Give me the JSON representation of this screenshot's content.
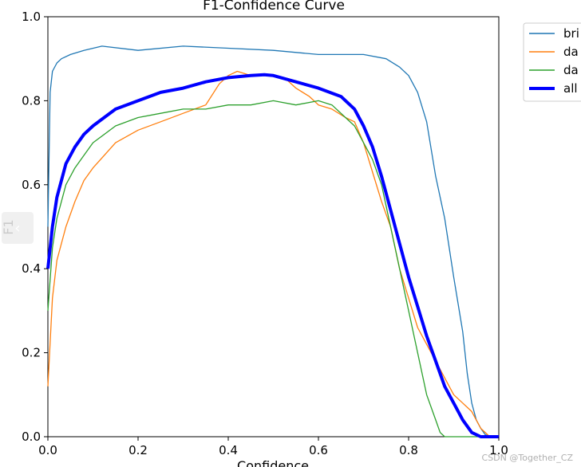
{
  "chart_data": {
    "type": "line",
    "title": "F1-Confidence Curve",
    "xlabel": "Confidence",
    "ylabel": "F1",
    "xlim": [
      0,
      1
    ],
    "ylim": [
      0,
      1
    ],
    "x_ticks": [
      "0.0",
      "0.2",
      "0.4",
      "0.6",
      "0.8",
      "1.0"
    ],
    "y_ticks": [
      "0.0",
      "0.2",
      "0.4",
      "0.6",
      "0.8",
      "1.0"
    ],
    "grid": false,
    "legend_position": "outside-top-right",
    "series": [
      {
        "name": "bri",
        "color": "#1f77b4",
        "width": "thin",
        "x": [
          0,
          0.005,
          0.01,
          0.02,
          0.03,
          0.05,
          0.08,
          0.12,
          0.2,
          0.3,
          0.4,
          0.5,
          0.6,
          0.7,
          0.75,
          0.78,
          0.8,
          0.82,
          0.84,
          0.86,
          0.88,
          0.9,
          0.92,
          0.93,
          0.94,
          0.95,
          0.96,
          0.97,
          0.98,
          1.0
        ],
        "y": [
          0.5,
          0.82,
          0.87,
          0.89,
          0.9,
          0.91,
          0.92,
          0.93,
          0.92,
          0.93,
          0.925,
          0.92,
          0.91,
          0.91,
          0.9,
          0.88,
          0.86,
          0.82,
          0.75,
          0.62,
          0.52,
          0.38,
          0.25,
          0.15,
          0.08,
          0.04,
          0.02,
          0.005,
          0,
          0
        ]
      },
      {
        "name": "da",
        "color": "#ff7f0e",
        "width": "thin",
        "x": [
          0,
          0.01,
          0.02,
          0.04,
          0.06,
          0.08,
          0.1,
          0.15,
          0.2,
          0.25,
          0.3,
          0.35,
          0.38,
          0.4,
          0.42,
          0.45,
          0.5,
          0.53,
          0.55,
          0.58,
          0.6,
          0.63,
          0.66,
          0.68,
          0.7,
          0.72,
          0.74,
          0.76,
          0.78,
          0.8,
          0.82,
          0.84,
          0.86,
          0.88,
          0.9,
          0.92,
          0.94,
          0.96,
          0.98,
          1.0
        ],
        "y": [
          0.12,
          0.33,
          0.42,
          0.5,
          0.56,
          0.61,
          0.64,
          0.7,
          0.73,
          0.75,
          0.77,
          0.79,
          0.84,
          0.86,
          0.87,
          0.86,
          0.86,
          0.85,
          0.83,
          0.81,
          0.79,
          0.78,
          0.76,
          0.75,
          0.7,
          0.63,
          0.56,
          0.5,
          0.4,
          0.33,
          0.26,
          0.22,
          0.18,
          0.14,
          0.1,
          0.08,
          0.06,
          0.02,
          0,
          0
        ]
      },
      {
        "name": "da",
        "color": "#2ca02c",
        "width": "thin",
        "x": [
          0,
          0.01,
          0.02,
          0.04,
          0.06,
          0.08,
          0.1,
          0.15,
          0.2,
          0.25,
          0.3,
          0.35,
          0.4,
          0.45,
          0.5,
          0.55,
          0.6,
          0.63,
          0.66,
          0.68,
          0.7,
          0.72,
          0.74,
          0.76,
          0.78,
          0.8,
          0.82,
          0.84,
          0.86,
          0.87,
          0.88,
          1.0
        ],
        "y": [
          0.3,
          0.45,
          0.52,
          0.6,
          0.64,
          0.67,
          0.7,
          0.74,
          0.76,
          0.77,
          0.78,
          0.78,
          0.79,
          0.79,
          0.8,
          0.79,
          0.8,
          0.79,
          0.76,
          0.74,
          0.7,
          0.66,
          0.6,
          0.5,
          0.4,
          0.3,
          0.2,
          0.1,
          0.04,
          0.01,
          0,
          0
        ]
      },
      {
        "name": "all",
        "color": "#0000ff",
        "width": "thick",
        "x": [
          0,
          0.01,
          0.02,
          0.04,
          0.06,
          0.08,
          0.1,
          0.15,
          0.2,
          0.25,
          0.3,
          0.35,
          0.4,
          0.45,
          0.48,
          0.5,
          0.55,
          0.6,
          0.65,
          0.68,
          0.7,
          0.72,
          0.74,
          0.76,
          0.78,
          0.8,
          0.82,
          0.84,
          0.86,
          0.88,
          0.9,
          0.92,
          0.94,
          0.96,
          0.98,
          1.0
        ],
        "y": [
          0.4,
          0.5,
          0.57,
          0.65,
          0.69,
          0.72,
          0.74,
          0.78,
          0.8,
          0.82,
          0.83,
          0.845,
          0.855,
          0.86,
          0.862,
          0.86,
          0.845,
          0.83,
          0.81,
          0.78,
          0.74,
          0.69,
          0.62,
          0.54,
          0.46,
          0.38,
          0.31,
          0.24,
          0.18,
          0.12,
          0.08,
          0.04,
          0.01,
          0,
          0,
          0
        ]
      }
    ]
  },
  "watermark": "CSDN @Together_CZ"
}
